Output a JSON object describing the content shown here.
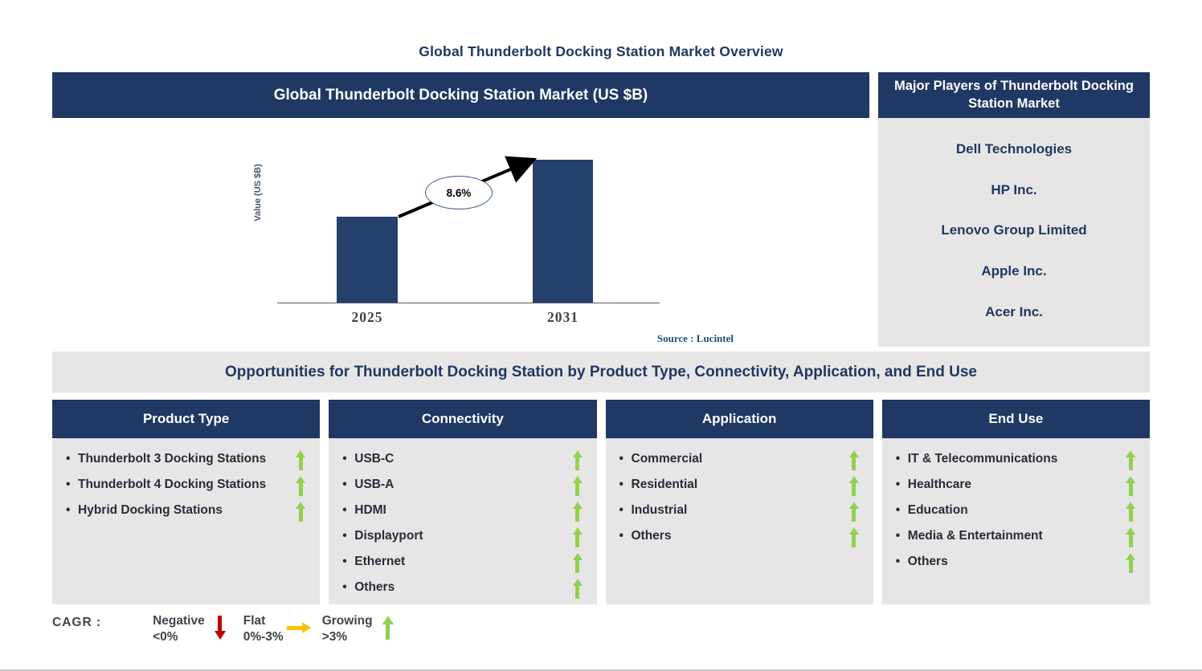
{
  "title": "Global Thunderbolt Docking Station Market Overview",
  "chart_panel": {
    "header": "Global Thunderbolt Docking Station Market (US $B)",
    "source": "Source : Lucintel"
  },
  "chart_data": {
    "type": "bar",
    "title": "Global Thunderbolt Docking Station Market (US $B)",
    "ylabel": "Value (US $B)",
    "categories": [
      "2025",
      "2031"
    ],
    "values_relative": [
      0.6,
      1.0
    ],
    "y_axis_tick_labels": [],
    "cagr_label": "8.6%",
    "bar_color": "#25406A",
    "legend_position": "none",
    "grid": false
  },
  "major_players": {
    "header": "Major Players of Thunderbolt Docking Station Market",
    "companies": [
      "Dell Technologies",
      "HP Inc.",
      "Lenovo Group Limited",
      "Apple Inc.",
      "Acer Inc."
    ]
  },
  "opportunities": {
    "title": "Opportunities for Thunderbolt Docking Station by Product Type, Connectivity, Application, and End Use",
    "columns": [
      {
        "header": "Product Type",
        "items": [
          {
            "label": "Thunderbolt 3 Docking Stations",
            "trend": "growing"
          },
          {
            "label": "Thunderbolt 4 Docking Stations",
            "trend": "growing"
          },
          {
            "label": "Hybrid Docking Stations",
            "trend": "growing"
          }
        ]
      },
      {
        "header": "Connectivity",
        "items": [
          {
            "label": "USB-C",
            "trend": "growing"
          },
          {
            "label": "USB-A",
            "trend": "growing"
          },
          {
            "label": "HDMI",
            "trend": "growing"
          },
          {
            "label": "Displayport",
            "trend": "growing"
          },
          {
            "label": "Ethernet",
            "trend": "growing"
          },
          {
            "label": "Others",
            "trend": "growing"
          }
        ]
      },
      {
        "header": "Application",
        "items": [
          {
            "label": "Commercial",
            "trend": "growing"
          },
          {
            "label": "Residential",
            "trend": "growing"
          },
          {
            "label": "Industrial",
            "trend": "growing"
          },
          {
            "label": "Others",
            "trend": "growing"
          }
        ]
      },
      {
        "header": "End Use",
        "items": [
          {
            "label": "IT & Telecommunications",
            "trend": "growing"
          },
          {
            "label": "Healthcare",
            "trend": "growing"
          },
          {
            "label": "Education",
            "trend": "growing"
          },
          {
            "label": "Media & Entertainment",
            "trend": "growing"
          },
          {
            "label": "Others",
            "trend": "growing"
          }
        ]
      }
    ]
  },
  "cagr_legend": {
    "prefix": "CAGR :",
    "entries": [
      {
        "label": "Negative",
        "range": "<0%",
        "trend": "negative",
        "arrow_color": "#C00000"
      },
      {
        "label": "Flat",
        "range": "0%-3%",
        "trend": "flat",
        "arrow_color": "#FFC000"
      },
      {
        "label": "Growing",
        "range": ">3%",
        "trend": "growing",
        "arrow_color": "#92D050"
      }
    ]
  },
  "colors": {
    "navy_header": "#1F3864",
    "panel_gray": "#E7E6E6",
    "bar_navy": "#25406A",
    "growing_green": "#92D050",
    "negative_red": "#C00000",
    "flat_amber": "#FFC000",
    "source_blue": "#1F4E79"
  }
}
